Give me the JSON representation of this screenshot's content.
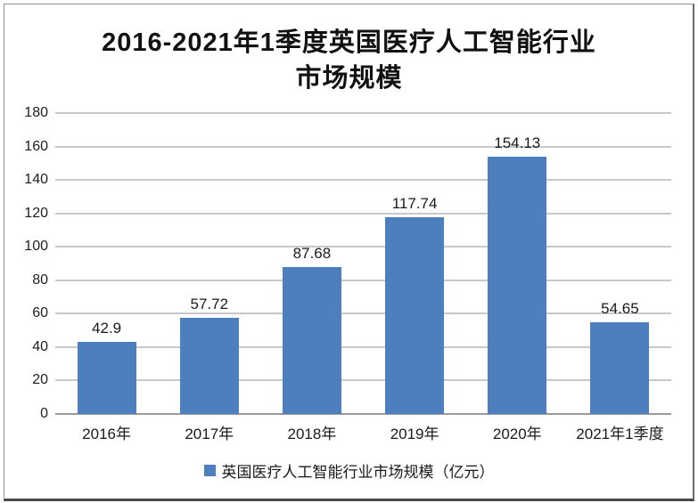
{
  "title_lines": [
    "2016-2021年1季度英国医疗人工智能行业",
    "市场规模"
  ],
  "chart_data": {
    "type": "bar",
    "title": "2016-2021年1季度英国医疗人工智能行业市场规模",
    "categories": [
      "2016年",
      "2017年",
      "2018年",
      "2019年",
      "2020年",
      "2021年1季度"
    ],
    "values": [
      42.9,
      57.72,
      87.68,
      117.74,
      154.13,
      54.65
    ],
    "value_labels": [
      "42.9",
      "57.72",
      "87.68",
      "117.74",
      "154.13",
      "54.65"
    ],
    "xlabel": "",
    "ylabel": "",
    "ylim": [
      0,
      180
    ],
    "yticks": [
      0,
      20,
      40,
      60,
      80,
      100,
      120,
      140,
      160,
      180
    ],
    "grid": true,
    "legend": {
      "position": "bottom",
      "entries": [
        "英国医疗人工智能行业市场规模（亿元）"
      ]
    },
    "bar_color": "#4d7ebe"
  },
  "colors": {
    "bar": "#4d7ebe",
    "gridline": "#c9c9c9",
    "baseline": "#9b9b9b",
    "text": "#1a1a1a",
    "frame_border": "#8f8f8f"
  }
}
